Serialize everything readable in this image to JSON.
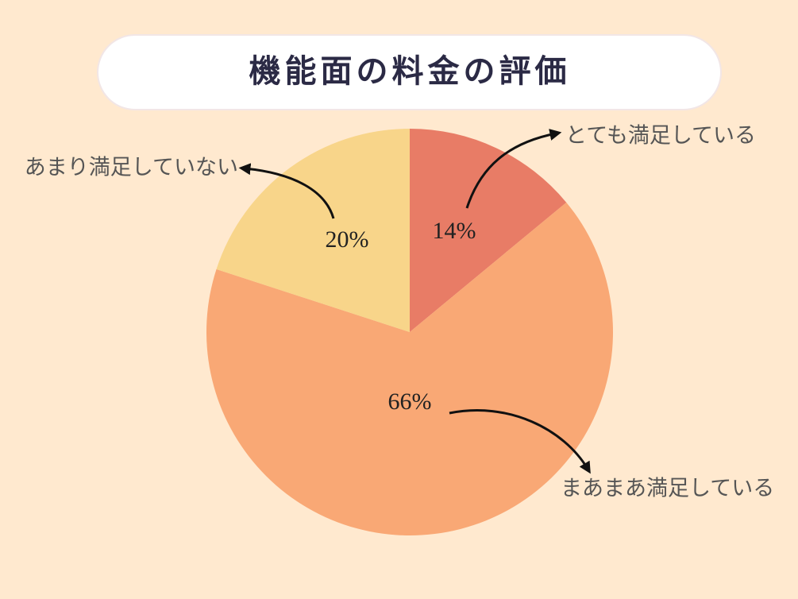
{
  "chart_data": {
    "type": "pie",
    "title": "機能面の料金の評価",
    "categories": [
      "とても満足している",
      "まあまあ満足している",
      "あまり満足していない"
    ],
    "values": [
      14,
      66,
      20
    ],
    "value_labels": [
      "14%",
      "66%",
      "20%"
    ],
    "colors": [
      "#e87c66",
      "#f9a875",
      "#f8d58a"
    ]
  }
}
